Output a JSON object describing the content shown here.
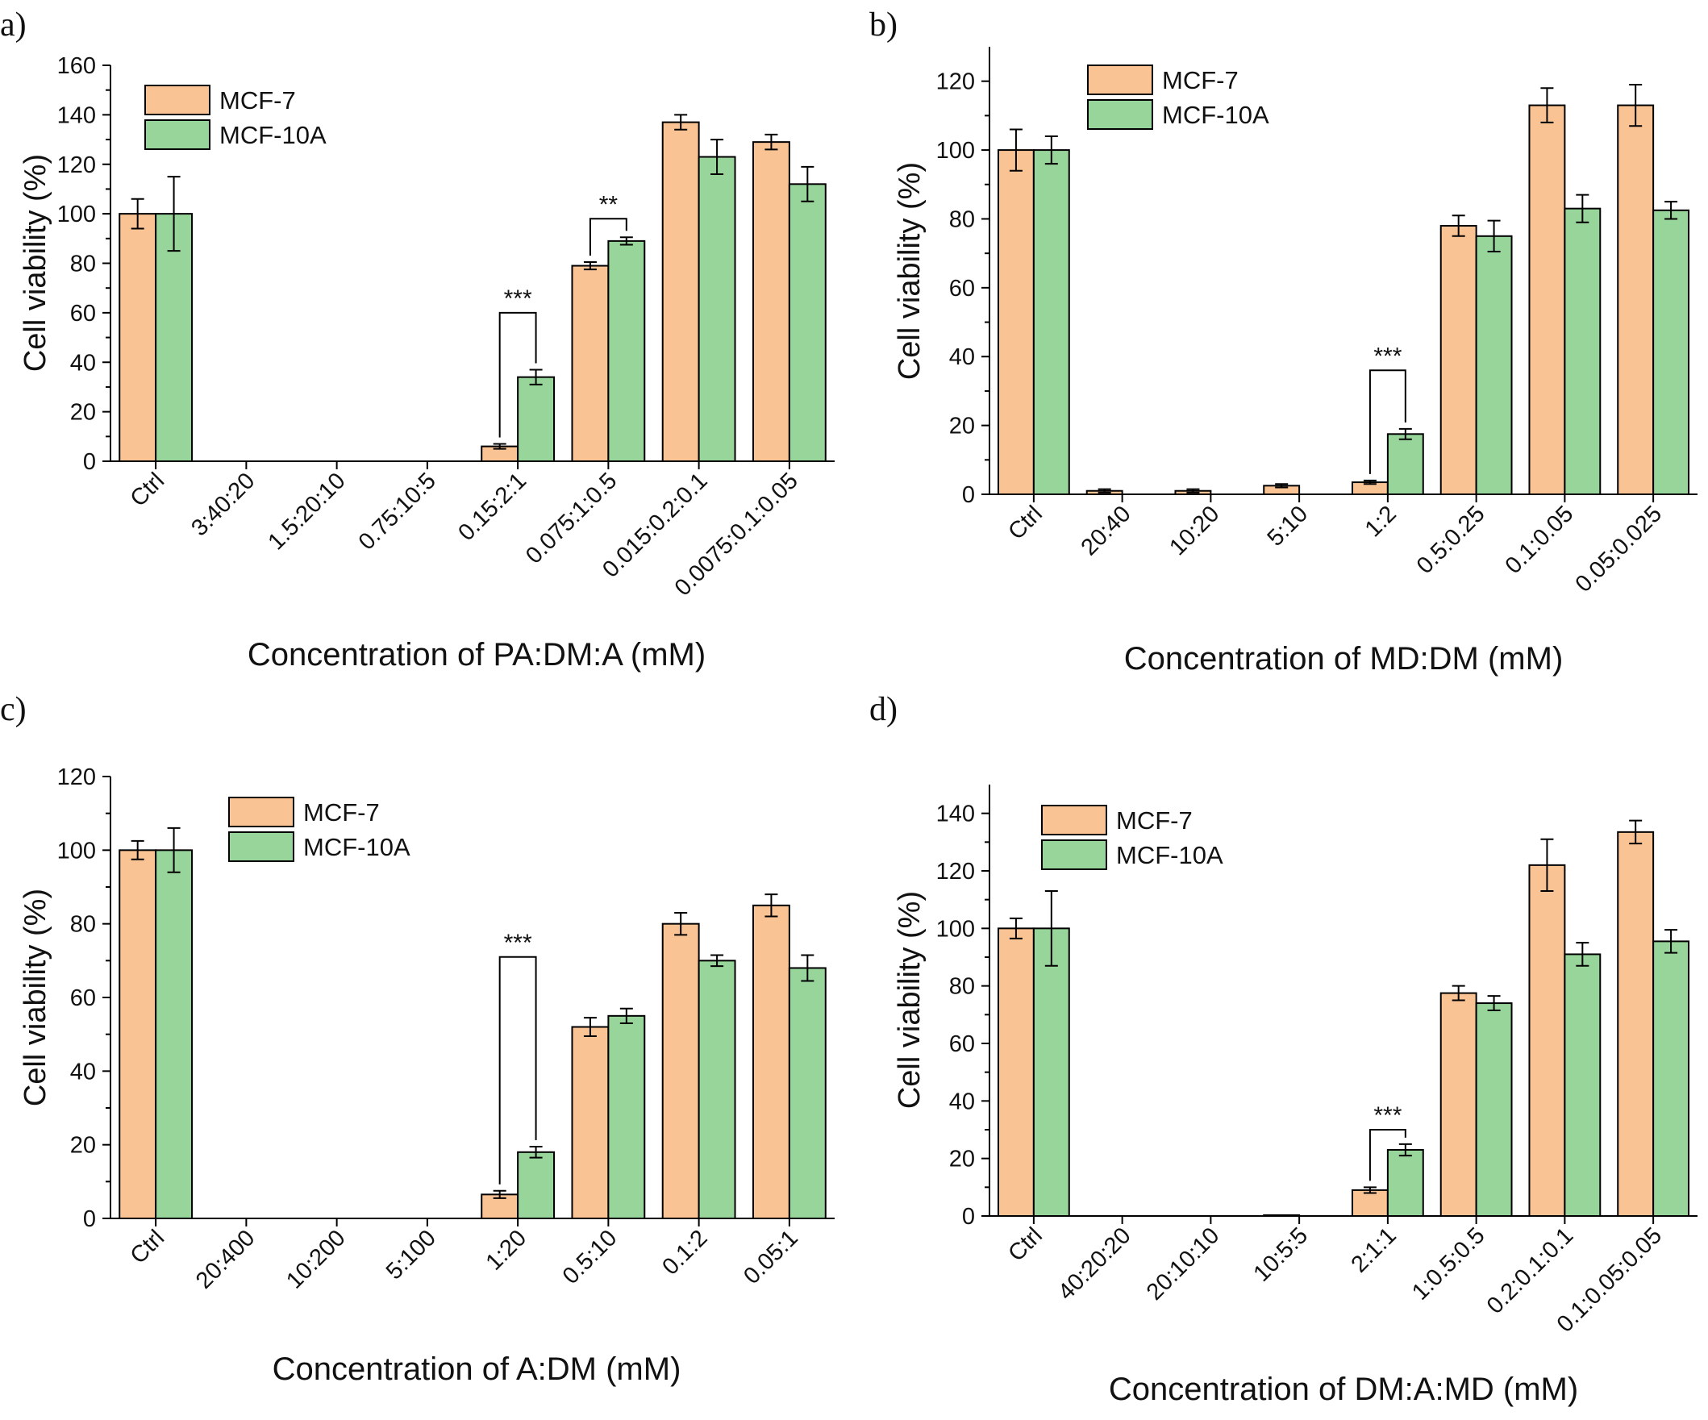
{
  "style": {
    "colors": {
      "MCF-7": "#f9c394",
      "MCF-10A": "#98d59a",
      "stroke": "#000000"
    }
  },
  "chart_data": [
    {
      "type": "bar",
      "panel": "a)",
      "xlabel": "Concentration of PA:DM:A (mM)",
      "ylabel": "Cell viability (%)",
      "ylim": [
        0,
        160
      ],
      "yticks": [
        0,
        20,
        40,
        60,
        80,
        100,
        120,
        140,
        160
      ],
      "categories": [
        "Ctrl",
        "3:40:20",
        "1.5:20:10",
        "0.75:10:5",
        "0.15:2:1",
        "0.075:1:0.5",
        "0.015:0.2:0.1",
        "0.0075:0.1:0.05"
      ],
      "series": [
        {
          "name": "MCF-7",
          "values": [
            100,
            0,
            0,
            0,
            6,
            79,
            137,
            129
          ],
          "errors": [
            6,
            0,
            0,
            0,
            1,
            1.5,
            3,
            3
          ]
        },
        {
          "name": "MCF-10A",
          "values": [
            100,
            0,
            0,
            0,
            34,
            89,
            123,
            112
          ],
          "errors": [
            15,
            0,
            0,
            0,
            3,
            1.5,
            7,
            7
          ]
        }
      ],
      "legend": "top-left",
      "significance": [
        {
          "category": 4,
          "label": "***",
          "top": 60
        },
        {
          "category": 5,
          "label": "**",
          "top": 98
        }
      ]
    },
    {
      "type": "bar",
      "panel": "b)",
      "xlabel": "Concentration of MD:DM (mM)",
      "ylabel": "Cell viability (%)",
      "ylim": [
        0,
        130
      ],
      "yticks": [
        0,
        20,
        40,
        60,
        80,
        100,
        120
      ],
      "categories": [
        "Ctrl",
        "20:40",
        "10:20",
        "5:10",
        "1:2",
        "0.5:0.25",
        "0.1:0.05",
        "0.05:0.025"
      ],
      "series": [
        {
          "name": "MCF-7",
          "values": [
            100,
            1,
            1,
            2.5,
            3.5,
            78,
            113,
            113
          ],
          "errors": [
            6,
            0.5,
            0.5,
            0.5,
            0.5,
            3,
            5,
            6
          ]
        },
        {
          "name": "MCF-10A",
          "values": [
            100,
            0,
            0,
            0,
            17.5,
            75,
            83,
            82.5
          ],
          "errors": [
            4,
            0,
            0,
            0,
            1.5,
            4.5,
            4,
            2.5
          ]
        }
      ],
      "legend": "top-left",
      "significance": [
        {
          "category": 4,
          "label": "***",
          "top": 36
        }
      ]
    },
    {
      "type": "bar",
      "panel": "c)",
      "xlabel": "Concentration of A:DM (mM)",
      "ylabel": "Cell viability (%)",
      "ylim": [
        0,
        120
      ],
      "yticks": [
        0,
        20,
        40,
        60,
        80,
        100,
        120
      ],
      "categories": [
        "Ctrl",
        "20:400",
        "10:200",
        "5:100",
        "1:20",
        "0.5:10",
        "0.1:2",
        "0.05:1"
      ],
      "series": [
        {
          "name": "MCF-7",
          "values": [
            100,
            0,
            0,
            0,
            6.5,
            52,
            80,
            85
          ],
          "errors": [
            2.5,
            0,
            0,
            0,
            1,
            2.5,
            3,
            3
          ]
        },
        {
          "name": "MCF-10A",
          "values": [
            100,
            0,
            0,
            0,
            18,
            55,
            70,
            68
          ],
          "errors": [
            6,
            0,
            0,
            0,
            1.5,
            2,
            1.5,
            3.5
          ]
        }
      ],
      "legend": "top-center",
      "significance": [
        {
          "category": 4,
          "label": "***",
          "top": 71
        }
      ]
    },
    {
      "type": "bar",
      "panel": "d)",
      "xlabel": "Concentration of DM:A:MD (mM)",
      "ylabel": "Cell viability (%)",
      "ylim": [
        0,
        150
      ],
      "yticks": [
        0,
        20,
        40,
        60,
        80,
        100,
        120,
        140
      ],
      "categories": [
        "Ctrl",
        "40:20:20",
        "20:10:10",
        "10:5:5",
        "2:1:1",
        "1:0.5:0.5",
        "0.2:0.1:0.1",
        "0.1:0.05:0.05"
      ],
      "series": [
        {
          "name": "MCF-7",
          "values": [
            100,
            0,
            0,
            0.3,
            9,
            77.5,
            122,
            133.5
          ],
          "errors": [
            3.5,
            0,
            0,
            0,
            1,
            2.5,
            9,
            4
          ]
        },
        {
          "name": "MCF-10A",
          "values": [
            100,
            0,
            0,
            0,
            23,
            74,
            91,
            95.5
          ],
          "errors": [
            13,
            0,
            0,
            0,
            2,
            2.5,
            4,
            4
          ]
        }
      ],
      "legend": "top-left",
      "significance": [
        {
          "category": 4,
          "label": "***",
          "top": 30
        }
      ]
    }
  ]
}
